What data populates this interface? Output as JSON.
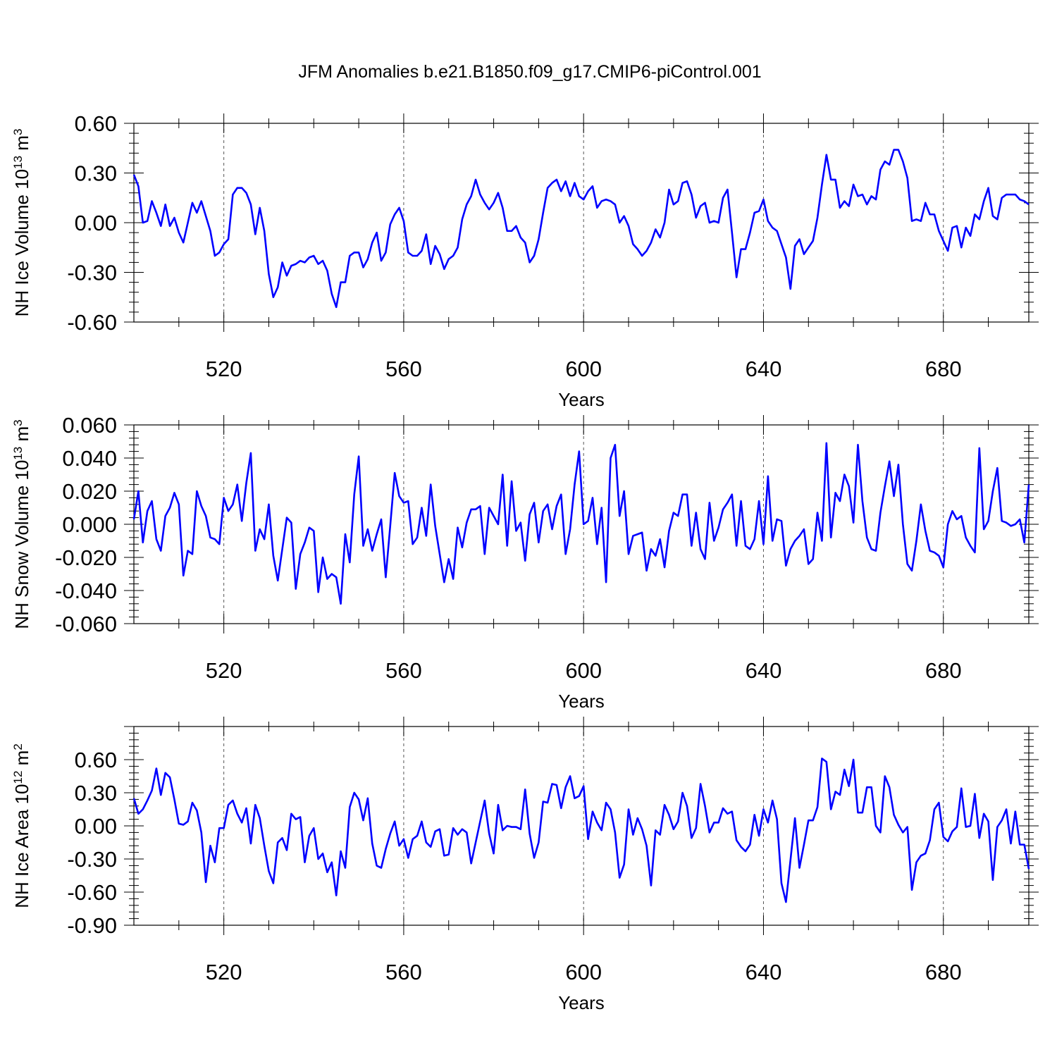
{
  "title": "JFM Anomalies b.e21.B1850.f09_g17.CMIP6-piControl.001",
  "chart_data": [
    {
      "type": "line",
      "ylabel_main": "NH Ice Volume 10",
      "ylabel_exp": "13",
      "ylabel_unit": " m",
      "ylabel_unit_exp": "3",
      "xlabel": "Years",
      "xlim": [
        500,
        699
      ],
      "ylim": [
        -0.6,
        0.6
      ],
      "xticks": [
        520,
        560,
        600,
        640,
        680
      ],
      "xticklabels": [
        "520",
        "560",
        "600",
        "640",
        "680"
      ],
      "yticks": [
        -0.6,
        -0.3,
        0.0,
        0.3,
        0.6
      ],
      "yticklabels": [
        "-0.60",
        "-0.30",
        "0.00",
        "0.30",
        "0.60"
      ],
      "color": "#0000ff",
      "x_start": 500,
      "values": [
        0.29,
        0.22,
        0.0,
        0.01,
        0.13,
        0.06,
        -0.02,
        0.11,
        -0.02,
        0.03,
        -0.06,
        -0.12,
        0.0,
        0.12,
        0.06,
        0.13,
        0.04,
        -0.05,
        -0.2,
        -0.18,
        -0.13,
        -0.1,
        0.17,
        0.21,
        0.21,
        0.18,
        0.11,
        -0.07,
        0.09,
        -0.05,
        -0.31,
        -0.45,
        -0.39,
        -0.24,
        -0.32,
        -0.26,
        -0.25,
        -0.23,
        -0.24,
        -0.21,
        -0.2,
        -0.25,
        -0.23,
        -0.29,
        -0.43,
        -0.51,
        -0.36,
        -0.36,
        -0.2,
        -0.18,
        -0.18,
        -0.27,
        -0.22,
        -0.12,
        -0.06,
        -0.23,
        -0.18,
        -0.01,
        0.05,
        0.09,
        0.01,
        -0.18,
        -0.2,
        -0.2,
        -0.17,
        -0.07,
        -0.25,
        -0.14,
        -0.19,
        -0.28,
        -0.22,
        -0.2,
        -0.15,
        0.02,
        0.11,
        0.16,
        0.26,
        0.17,
        0.12,
        0.08,
        0.12,
        0.18,
        0.09,
        -0.05,
        -0.05,
        -0.02,
        -0.09,
        -0.12,
        -0.24,
        -0.2,
        -0.1,
        0.06,
        0.21,
        0.24,
        0.26,
        0.19,
        0.25,
        0.16,
        0.24,
        0.16,
        0.14,
        0.19,
        0.22,
        0.09,
        0.13,
        0.14,
        0.13,
        0.11,
        0.0,
        0.04,
        -0.02,
        -0.13,
        -0.16,
        -0.2,
        -0.17,
        -0.12,
        -0.04,
        -0.09,
        0.0,
        0.2,
        0.11,
        0.13,
        0.24,
        0.25,
        0.17,
        0.03,
        0.1,
        0.12,
        0.0,
        0.01,
        0.0,
        0.15,
        0.2,
        -0.06,
        -0.33,
        -0.16,
        -0.16,
        -0.06,
        0.06,
        0.07,
        0.14,
        0.01,
        -0.03,
        -0.05,
        -0.13,
        -0.21,
        -0.4,
        -0.14,
        -0.1,
        -0.19,
        -0.15,
        -0.11,
        0.03,
        0.23,
        0.41,
        0.26,
        0.26,
        0.09,
        0.13,
        0.1,
        0.23,
        0.16,
        0.17,
        0.11,
        0.16,
        0.14,
        0.32,
        0.37,
        0.35,
        0.44,
        0.44,
        0.37,
        0.27,
        0.01,
        0.02,
        0.01,
        0.12,
        0.05,
        0.05,
        -0.05,
        -0.11,
        -0.17,
        -0.03,
        -0.02,
        -0.15,
        -0.03,
        -0.08,
        0.05,
        0.02,
        0.13,
        0.21,
        0.04,
        0.02,
        0.15,
        0.17,
        0.17,
        0.17,
        0.14,
        0.13,
        0.11
      ]
    },
    {
      "type": "line",
      "ylabel_main": "NH Snow Volume 10",
      "ylabel_exp": "13",
      "ylabel_unit": " m",
      "ylabel_unit_exp": "3",
      "xlabel": "Years",
      "xlim": [
        500,
        699
      ],
      "ylim": [
        -0.06,
        0.06
      ],
      "xticks": [
        520,
        560,
        600,
        640,
        680
      ],
      "xticklabels": [
        "520",
        "560",
        "600",
        "640",
        "680"
      ],
      "yticks": [
        -0.06,
        -0.04,
        -0.02,
        0.0,
        0.02,
        0.04,
        0.06
      ],
      "yticklabels": [
        "-0.060",
        "-0.040",
        "-0.020",
        "0.000",
        "0.020",
        "0.040",
        "0.060"
      ],
      "color": "#0000ff",
      "x_start": 500,
      "values": [
        0.003,
        0.02,
        -0.011,
        0.008,
        0.014,
        -0.009,
        -0.016,
        0.005,
        0.01,
        0.019,
        0.012,
        -0.031,
        -0.016,
        -0.018,
        0.02,
        0.011,
        0.005,
        -0.008,
        -0.009,
        -0.012,
        0.016,
        0.008,
        0.012,
        0.024,
        0.002,
        0.025,
        0.043,
        -0.016,
        -0.003,
        -0.009,
        0.012,
        -0.019,
        -0.034,
        -0.015,
        0.004,
        0.001,
        -0.039,
        -0.018,
        -0.011,
        -0.002,
        -0.004,
        -0.041,
        -0.02,
        -0.033,
        -0.03,
        -0.032,
        -0.048,
        -0.006,
        -0.023,
        0.018,
        0.041,
        -0.013,
        -0.003,
        -0.016,
        -0.006,
        0.003,
        -0.032,
        -0.001,
        0.031,
        0.017,
        0.013,
        0.014,
        -0.012,
        -0.008,
        0.01,
        -0.007,
        0.024,
        -0.001,
        -0.018,
        -0.035,
        -0.021,
        -0.033,
        -0.002,
        -0.014,
        0.001,
        0.009,
        0.009,
        0.011,
        -0.018,
        0.01,
        0.005,
        0.0,
        0.03,
        -0.013,
        0.026,
        -0.004,
        0.001,
        -0.022,
        0.006,
        0.013,
        -0.011,
        0.008,
        0.012,
        -0.003,
        0.011,
        0.018,
        -0.018,
        -0.003,
        0.024,
        0.044,
        0.0,
        0.002,
        0.016,
        -0.012,
        0.01,
        -0.035,
        0.04,
        0.048,
        0.005,
        0.02,
        -0.018,
        -0.007,
        -0.006,
        -0.005,
        -0.028,
        -0.015,
        -0.019,
        -0.009,
        -0.026,
        -0.004,
        0.007,
        0.005,
        0.018,
        0.018,
        -0.013,
        0.007,
        -0.015,
        -0.021,
        0.013,
        -0.01,
        -0.002,
        0.009,
        0.013,
        0.018,
        -0.013,
        0.014,
        -0.013,
        -0.015,
        -0.009,
        0.014,
        -0.012,
        0.029,
        -0.01,
        0.003,
        0.002,
        -0.025,
        -0.015,
        -0.01,
        -0.007,
        -0.003,
        -0.024,
        -0.021,
        0.007,
        -0.01,
        0.049,
        -0.008,
        0.019,
        0.014,
        0.03,
        0.023,
        0.001,
        0.048,
        0.014,
        -0.008,
        -0.015,
        -0.016,
        0.007,
        0.023,
        0.038,
        0.017,
        0.036,
        0.0,
        -0.024,
        -0.028,
        -0.01,
        0.012,
        -0.004,
        -0.016,
        -0.017,
        -0.019,
        -0.026,
        0.0,
        0.008,
        0.003,
        0.005,
        -0.008,
        -0.013,
        -0.017,
        0.046,
        -0.003,
        0.002,
        0.02,
        0.034,
        0.002,
        0.001,
        -0.001,
        0.0,
        0.003,
        -0.011,
        0.024
      ]
    },
    {
      "type": "line",
      "ylabel_main": "NH Ice Area 10",
      "ylabel_exp": "12",
      "ylabel_unit": " m",
      "ylabel_unit_exp": "2",
      "xlabel": "Years",
      "xlim": [
        500,
        699
      ],
      "ylim": [
        -0.9,
        0.9
      ],
      "xticks": [
        520,
        560,
        600,
        640,
        680
      ],
      "xticklabels": [
        "520",
        "560",
        "600",
        "640",
        "680"
      ],
      "yticks": [
        -0.9,
        -0.6,
        -0.3,
        0.0,
        0.3,
        0.6
      ],
      "yticklabels": [
        "-0.90",
        "-0.60",
        "-0.30",
        "0.00",
        "0.30",
        "0.60"
      ],
      "color": "#0000ff",
      "x_start": 500,
      "values": [
        0.25,
        0.11,
        0.15,
        0.23,
        0.32,
        0.52,
        0.28,
        0.48,
        0.44,
        0.24,
        0.02,
        0.01,
        0.04,
        0.21,
        0.14,
        -0.06,
        -0.51,
        -0.18,
        -0.33,
        -0.02,
        -0.02,
        0.19,
        0.23,
        0.11,
        0.03,
        0.16,
        -0.16,
        0.19,
        0.07,
        -0.18,
        -0.41,
        -0.52,
        -0.15,
        -0.11,
        -0.22,
        0.11,
        0.06,
        0.08,
        -0.33,
        -0.09,
        -0.02,
        -0.3,
        -0.25,
        -0.42,
        -0.33,
        -0.63,
        -0.23,
        -0.38,
        0.17,
        0.3,
        0.24,
        0.05,
        0.25,
        -0.16,
        -0.36,
        -0.38,
        -0.21,
        -0.07,
        0.04,
        -0.18,
        -0.12,
        -0.29,
        -0.12,
        -0.09,
        0.04,
        -0.15,
        -0.19,
        -0.05,
        -0.03,
        -0.27,
        -0.26,
        -0.02,
        -0.08,
        -0.03,
        -0.06,
        -0.34,
        -0.15,
        0.04,
        0.23,
        -0.07,
        -0.25,
        0.19,
        -0.04,
        0.0,
        -0.01,
        -0.01,
        -0.03,
        0.33,
        -0.07,
        -0.29,
        -0.15,
        0.22,
        0.21,
        0.38,
        0.37,
        0.16,
        0.35,
        0.45,
        0.25,
        0.27,
        0.36,
        -0.12,
        0.13,
        0.03,
        -0.04,
        0.21,
        0.15,
        -0.06,
        -0.47,
        -0.35,
        0.15,
        -0.08,
        0.07,
        -0.03,
        -0.18,
        -0.54,
        -0.04,
        -0.08,
        0.19,
        0.1,
        -0.03,
        0.04,
        0.3,
        0.18,
        -0.11,
        -0.02,
        0.38,
        0.18,
        -0.06,
        0.03,
        0.03,
        0.16,
        0.11,
        0.13,
        -0.13,
        -0.19,
        -0.23,
        -0.17,
        0.1,
        -0.09,
        0.15,
        0.03,
        0.23,
        0.06,
        -0.52,
        -0.69,
        -0.31,
        0.07,
        -0.38,
        -0.17,
        0.05,
        0.05,
        0.17,
        0.61,
        0.58,
        0.15,
        0.31,
        0.28,
        0.51,
        0.36,
        0.6,
        0.12,
        0.12,
        0.35,
        0.35,
        0.0,
        -0.06,
        0.45,
        0.35,
        0.1,
        0.01,
        -0.06,
        -0.01,
        -0.58,
        -0.33,
        -0.27,
        -0.25,
        -0.13,
        0.15,
        0.21,
        -0.1,
        -0.14,
        -0.05,
        -0.01,
        0.34,
        -0.01,
        0.0,
        0.29,
        -0.11,
        0.11,
        0.04,
        -0.49,
        -0.01,
        0.05,
        0.15,
        -0.16,
        0.13,
        -0.17,
        -0.17,
        -0.39
      ]
    }
  ]
}
